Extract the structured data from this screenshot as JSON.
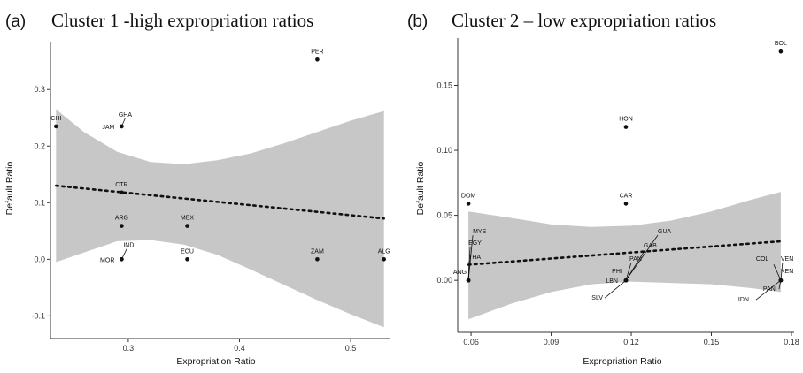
{
  "chart_data": [
    {
      "type": "scatter",
      "panel_letter": "(a)",
      "title": "Cluster 1 -high expropriation ratios",
      "xlabel": "Expropriation Ratio",
      "ylabel": "Default Ratio",
      "xlim": [
        0.23,
        0.535
      ],
      "ylim": [
        -0.14,
        0.38
      ],
      "xticks": [
        "0.3",
        "0.4",
        "0.5"
      ],
      "xtick_values": [
        0.3,
        0.4,
        0.5
      ],
      "yticks": [
        "-0.1",
        "0.0",
        "0.1",
        "0.2",
        "0.3"
      ],
      "ytick_values": [
        -0.1,
        0.0,
        0.1,
        0.2,
        0.3
      ],
      "grid": false,
      "points": [
        {
          "label": "PER",
          "x": 0.47,
          "y": 0.353
        },
        {
          "label": "CHI",
          "x": 0.235,
          "y": 0.235
        },
        {
          "label": "GHA",
          "x": 0.294,
          "y": 0.235
        },
        {
          "label": "JAM",
          "x": 0.294,
          "y": 0.235
        },
        {
          "label": "CTR",
          "x": 0.294,
          "y": 0.118
        },
        {
          "label": "ARG",
          "x": 0.294,
          "y": 0.059
        },
        {
          "label": "MEX",
          "x": 0.353,
          "y": 0.059
        },
        {
          "label": "IND",
          "x": 0.294,
          "y": 0.0
        },
        {
          "label": "MOR",
          "x": 0.294,
          "y": 0.0
        },
        {
          "label": "ECU",
          "x": 0.353,
          "y": 0.0
        },
        {
          "label": "ZAM",
          "x": 0.47,
          "y": 0.0
        },
        {
          "label": "ALG",
          "x": 0.53,
          "y": 0.0
        }
      ],
      "fit_line": {
        "x": [
          0.235,
          0.53
        ],
        "y": [
          0.13,
          0.072
        ]
      },
      "confidence_band": {
        "x": [
          0.235,
          0.26,
          0.29,
          0.32,
          0.35,
          0.38,
          0.41,
          0.44,
          0.47,
          0.5,
          0.53
        ],
        "upper": [
          0.265,
          0.225,
          0.19,
          0.172,
          0.168,
          0.175,
          0.187,
          0.205,
          0.225,
          0.245,
          0.262
        ],
        "lower": [
          -0.005,
          0.012,
          0.032,
          0.034,
          0.026,
          0.008,
          -0.018,
          -0.045,
          -0.072,
          -0.097,
          -0.12
        ]
      }
    },
    {
      "type": "scatter",
      "panel_letter": "(b)",
      "title": "Cluster 2 – low expropriation ratios",
      "xlabel": "Expropriation Ratio",
      "ylabel": "Default Ratio",
      "xlim": [
        0.055,
        0.181
      ],
      "ylim": [
        -0.04,
        0.185
      ],
      "xticks": [
        "0.06",
        "0.09",
        "0.12",
        "0.15",
        "0.18"
      ],
      "xtick_values": [
        0.06,
        0.09,
        0.12,
        0.15,
        0.18
      ],
      "yticks": [
        "0.00",
        "0.05",
        "0.10",
        "0.15"
      ],
      "ytick_values": [
        0.0,
        0.05,
        0.1,
        0.15
      ],
      "grid": false,
      "points": [
        {
          "label": "BOL",
          "x": 0.176,
          "y": 0.176
        },
        {
          "label": "HON",
          "x": 0.118,
          "y": 0.118
        },
        {
          "label": "DOM",
          "x": 0.059,
          "y": 0.059
        },
        {
          "label": "CAR",
          "x": 0.118,
          "y": 0.059
        },
        {
          "label": "MYS",
          "x": 0.059,
          "y": 0.0
        },
        {
          "label": "EGY",
          "x": 0.059,
          "y": 0.0
        },
        {
          "label": "THA",
          "x": 0.059,
          "y": 0.0
        },
        {
          "label": "ANG",
          "x": 0.059,
          "y": 0.0
        },
        {
          "label": "GUA",
          "x": 0.118,
          "y": 0.0
        },
        {
          "label": "GAB",
          "x": 0.118,
          "y": 0.0
        },
        {
          "label": "PAN",
          "x": 0.118,
          "y": 0.0
        },
        {
          "label": "PHI",
          "x": 0.118,
          "y": 0.0
        },
        {
          "label": "LBN",
          "x": 0.118,
          "y": 0.0
        },
        {
          "label": "SLV",
          "x": 0.118,
          "y": 0.0
        },
        {
          "label": "COL",
          "x": 0.176,
          "y": 0.0
        },
        {
          "label": "VEN",
          "x": 0.176,
          "y": 0.0
        },
        {
          "label": "KEN",
          "x": 0.176,
          "y": 0.0
        },
        {
          "label": "PAN",
          "x": 0.176,
          "y": 0.0
        },
        {
          "label": "IDN",
          "x": 0.176,
          "y": 0.0
        }
      ],
      "fit_line": {
        "x": [
          0.059,
          0.176
        ],
        "y": [
          0.012,
          0.03
        ]
      },
      "confidence_band": {
        "x": [
          0.059,
          0.075,
          0.09,
          0.105,
          0.12,
          0.135,
          0.15,
          0.165,
          0.176
        ],
        "upper": [
          0.053,
          0.048,
          0.043,
          0.041,
          0.042,
          0.046,
          0.053,
          0.062,
          0.068
        ],
        "lower": [
          -0.03,
          -0.018,
          -0.009,
          -0.003,
          -0.001,
          -0.002,
          -0.003,
          -0.006,
          -0.009
        ]
      }
    }
  ]
}
